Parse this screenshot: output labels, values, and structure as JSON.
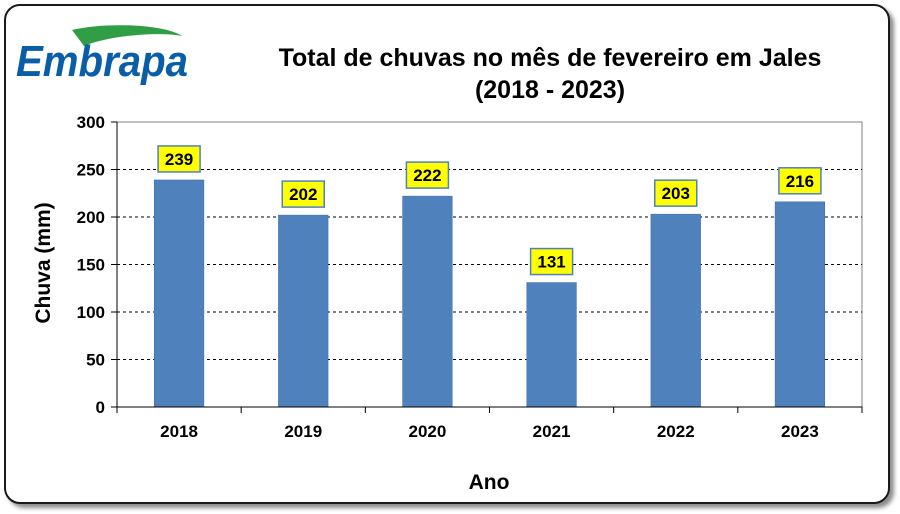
{
  "logo": {
    "text": "Embrapa",
    "color": "#0a5ea8",
    "accent": "#2f9e44"
  },
  "title_line1": "Total de chuvas no mês de fevereiro em Jales",
  "title_line2": "(2018 - 2023)",
  "chart_data": {
    "type": "bar",
    "categories": [
      "2018",
      "2019",
      "2020",
      "2021",
      "2022",
      "2023"
    ],
    "values": [
      239,
      202,
      222,
      131,
      203,
      216
    ],
    "xlabel": "Ano",
    "ylabel": "Chuva (mm)",
    "ylim": [
      0,
      300
    ],
    "yticks": [
      0,
      50,
      100,
      150,
      200,
      250,
      300
    ],
    "grid": true,
    "bar_color": "#4f81bd",
    "label_bg": "#ffff00",
    "label_border": "#4f81bd"
  }
}
